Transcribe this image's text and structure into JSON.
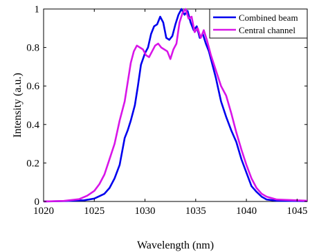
{
  "chart_data": {
    "type": "line",
    "title": "",
    "xlabel": "Wavelength (nm)",
    "ylabel": "Intensity (a.u.)",
    "xlim": [
      1020,
      1046
    ],
    "ylim": [
      0,
      1
    ],
    "xticks": [
      1020,
      1025,
      1030,
      1035,
      1040,
      1045
    ],
    "yticks": [
      0,
      0.2,
      0.4,
      0.6,
      0.8,
      1
    ],
    "xtick_labels": [
      "1020",
      "1025",
      "1030",
      "1035",
      "1040",
      "1045"
    ],
    "ytick_labels": [
      "0",
      "0.2",
      "0.4",
      "0.6",
      "0.8",
      "1"
    ],
    "grid": false,
    "legend_position": "top-right",
    "series": [
      {
        "name": "Combined beam",
        "color": "#0000ee",
        "points": [
          [
            1020,
            0.0
          ],
          [
            1022,
            0.002
          ],
          [
            1024,
            0.006
          ],
          [
            1025,
            0.015
          ],
          [
            1026,
            0.04
          ],
          [
            1026.5,
            0.07
          ],
          [
            1027,
            0.12
          ],
          [
            1027.5,
            0.19
          ],
          [
            1028,
            0.33
          ],
          [
            1028.3,
            0.37
          ],
          [
            1028.6,
            0.42
          ],
          [
            1029,
            0.5
          ],
          [
            1029.3,
            0.6
          ],
          [
            1029.6,
            0.71
          ],
          [
            1030,
            0.77
          ],
          [
            1030.3,
            0.8
          ],
          [
            1030.6,
            0.87
          ],
          [
            1030.9,
            0.91
          ],
          [
            1031.2,
            0.92
          ],
          [
            1031.5,
            0.96
          ],
          [
            1031.8,
            0.93
          ],
          [
            1032.1,
            0.85
          ],
          [
            1032.4,
            0.84
          ],
          [
            1032.7,
            0.86
          ],
          [
            1033,
            0.92
          ],
          [
            1033.3,
            0.97
          ],
          [
            1033.6,
            1.0
          ],
          [
            1033.9,
            0.97
          ],
          [
            1034.2,
            0.99
          ],
          [
            1034.5,
            0.93
          ],
          [
            1034.8,
            0.89
          ],
          [
            1035.1,
            0.91
          ],
          [
            1035.4,
            0.85
          ],
          [
            1035.7,
            0.87
          ],
          [
            1036,
            0.82
          ],
          [
            1036.3,
            0.78
          ],
          [
            1036.6,
            0.72
          ],
          [
            1037,
            0.64
          ],
          [
            1037.5,
            0.52
          ],
          [
            1038,
            0.44
          ],
          [
            1038.5,
            0.37
          ],
          [
            1039,
            0.31
          ],
          [
            1039.5,
            0.22
          ],
          [
            1040,
            0.15
          ],
          [
            1040.5,
            0.08
          ],
          [
            1041,
            0.05
          ],
          [
            1041.5,
            0.025
          ],
          [
            1042,
            0.01
          ],
          [
            1043,
            0.004
          ],
          [
            1046,
            0.002
          ]
        ]
      },
      {
        "name": "Central channel",
        "color": "#d815e8",
        "points": [
          [
            1020,
            0.0
          ],
          [
            1022,
            0.003
          ],
          [
            1023.5,
            0.012
          ],
          [
            1024.3,
            0.03
          ],
          [
            1025,
            0.055
          ],
          [
            1025.5,
            0.09
          ],
          [
            1026,
            0.14
          ],
          [
            1026.5,
            0.22
          ],
          [
            1027,
            0.3
          ],
          [
            1027.5,
            0.42
          ],
          [
            1028,
            0.52
          ],
          [
            1028.3,
            0.62
          ],
          [
            1028.6,
            0.72
          ],
          [
            1028.9,
            0.78
          ],
          [
            1029.2,
            0.81
          ],
          [
            1029.5,
            0.8
          ],
          [
            1029.8,
            0.79
          ],
          [
            1030.1,
            0.76
          ],
          [
            1030.4,
            0.75
          ],
          [
            1030.7,
            0.78
          ],
          [
            1031,
            0.81
          ],
          [
            1031.3,
            0.82
          ],
          [
            1031.6,
            0.8
          ],
          [
            1031.9,
            0.79
          ],
          [
            1032.2,
            0.78
          ],
          [
            1032.5,
            0.74
          ],
          [
            1032.8,
            0.79
          ],
          [
            1033.1,
            0.82
          ],
          [
            1033.4,
            0.93
          ],
          [
            1033.7,
            0.98
          ],
          [
            1034,
            1.0
          ],
          [
            1034.3,
            0.95
          ],
          [
            1034.6,
            0.96
          ],
          [
            1034.9,
            0.88
          ],
          [
            1035.2,
            0.9
          ],
          [
            1035.5,
            0.85
          ],
          [
            1035.8,
            0.89
          ],
          [
            1036.1,
            0.84
          ],
          [
            1036.5,
            0.76
          ],
          [
            1037,
            0.68
          ],
          [
            1037.5,
            0.6
          ],
          [
            1038,
            0.55
          ],
          [
            1038.5,
            0.46
          ],
          [
            1039,
            0.36
          ],
          [
            1039.5,
            0.27
          ],
          [
            1040,
            0.19
          ],
          [
            1040.5,
            0.12
          ],
          [
            1041,
            0.07
          ],
          [
            1041.5,
            0.04
          ],
          [
            1042,
            0.025
          ],
          [
            1043,
            0.01
          ],
          [
            1046,
            0.004
          ]
        ]
      }
    ]
  }
}
